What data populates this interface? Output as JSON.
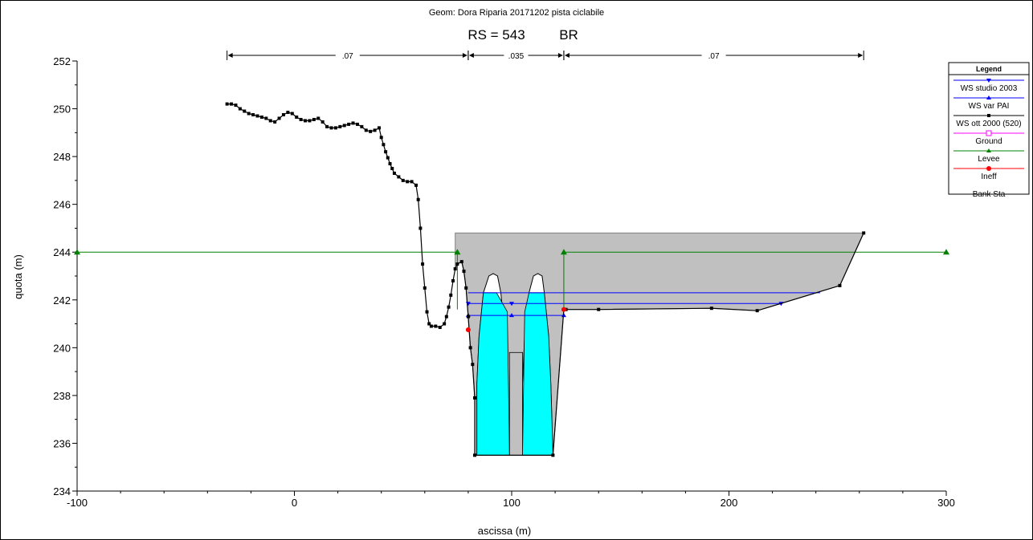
{
  "chart_data": {
    "type": "line",
    "title": "Geom: Dora Riparia 20171202 pista ciclabile",
    "subtitle_rs": "RS = 543",
    "subtitle_type": "BR",
    "xlabel": "ascissa (m)",
    "ylabel": "quota (m)",
    "xlim": [
      -100,
      300
    ],
    "ylim": [
      234,
      252
    ],
    "x_ticks": [
      "-100",
      "0",
      "100",
      "200",
      "300"
    ],
    "y_ticks": [
      "234",
      "236",
      "238",
      "240",
      "242",
      "244",
      "246",
      "248",
      "250",
      "252"
    ],
    "grid": false,
    "legend_position": "right",
    "mannings": [
      {
        "label": ".07",
        "from": -31,
        "to": 80
      },
      {
        "label": ".035",
        "from": 80,
        "to": 124
      },
      {
        "label": ".07",
        "from": 124,
        "to": 262
      }
    ],
    "legend": {
      "title": "Legend",
      "items": [
        {
          "label": "WS studio 2003",
          "color": "#0000ff",
          "marker": "triangle-down"
        },
        {
          "label": "WS var PAI",
          "color": "#0000ff",
          "marker": "triangle-up"
        },
        {
          "label": "WS ott 2000 (520)",
          "color": "#000000",
          "marker": "square"
        },
        {
          "label": "Ground",
          "color": "#ff00ff",
          "marker": "open-square"
        },
        {
          "label": "Levee",
          "color": "#008000",
          "marker": "triangle-up"
        },
        {
          "label": "Ineff",
          "color": "#ff0000",
          "marker": "circle"
        },
        {
          "label": "Bank Sta",
          "color": "",
          "marker": "none"
        }
      ]
    },
    "ground": [
      [
        -31,
        250.2
      ],
      [
        -29,
        250.2
      ],
      [
        -27,
        250.15
      ],
      [
        -25,
        250.0
      ],
      [
        -23,
        249.9
      ],
      [
        -21,
        249.8
      ],
      [
        -19,
        249.75
      ],
      [
        -17,
        249.7
      ],
      [
        -15,
        249.65
      ],
      [
        -13,
        249.6
      ],
      [
        -11,
        249.5
      ],
      [
        -9,
        249.45
      ],
      [
        -7,
        249.6
      ],
      [
        -5,
        249.75
      ],
      [
        -3,
        249.85
      ],
      [
        -1,
        249.8
      ],
      [
        1,
        249.65
      ],
      [
        3,
        249.55
      ],
      [
        5,
        249.5
      ],
      [
        7,
        249.5
      ],
      [
        9,
        249.55
      ],
      [
        11,
        249.6
      ],
      [
        13,
        249.45
      ],
      [
        15,
        249.25
      ],
      [
        17,
        249.2
      ],
      [
        19,
        249.2
      ],
      [
        21,
        249.25
      ],
      [
        23,
        249.3
      ],
      [
        25,
        249.35
      ],
      [
        27,
        249.4
      ],
      [
        29,
        249.35
      ],
      [
        31,
        249.25
      ],
      [
        33,
        249.1
      ],
      [
        35,
        249.05
      ],
      [
        37,
        249.1
      ],
      [
        39,
        249.2
      ],
      [
        40,
        248.8
      ],
      [
        41,
        248.5
      ],
      [
        42,
        248.2
      ],
      [
        43,
        247.95
      ],
      [
        44,
        247.7
      ],
      [
        45,
        247.5
      ],
      [
        46,
        247.3
      ],
      [
        48,
        247.15
      ],
      [
        50,
        247.0
      ],
      [
        52,
        246.95
      ],
      [
        54,
        246.95
      ],
      [
        56,
        246.8
      ],
      [
        57,
        246.2
      ],
      [
        58,
        245.0
      ],
      [
        59,
        243.5
      ],
      [
        60,
        242.5
      ],
      [
        61,
        241.5
      ],
      [
        62,
        241.0
      ],
      [
        63,
        240.9
      ],
      [
        65,
        240.9
      ],
      [
        67,
        240.85
      ],
      [
        69,
        241.0
      ],
      [
        70,
        241.3
      ],
      [
        71,
        241.7
      ],
      [
        72,
        242.2
      ],
      [
        73,
        242.8
      ],
      [
        74,
        243.3
      ],
      [
        75,
        243.5
      ],
      [
        77,
        243.6
      ],
      [
        78,
        243.2
      ],
      [
        79,
        242.5
      ],
      [
        80,
        241.3
      ],
      [
        81,
        240.0
      ],
      [
        82,
        239.3
      ],
      [
        83,
        237.9
      ],
      [
        83,
        235.5
      ],
      [
        119,
        235.5
      ],
      [
        124,
        241.6
      ],
      [
        125,
        241.6
      ],
      [
        140,
        241.6
      ],
      [
        192,
        241.65
      ],
      [
        213,
        241.55
      ],
      [
        251,
        242.6
      ],
      [
        262,
        244.8
      ]
    ],
    "deck": {
      "top": 244.8,
      "x_from": 74,
      "x_to": 262
    },
    "openings": [
      {
        "water_left": [
          [
            84,
            235.5
          ],
          [
            99,
            235.5
          ],
          [
            98,
            241.5
          ],
          [
            93,
            242.3
          ],
          [
            87,
            242.3
          ],
          [
            85,
            240.5
          ],
          [
            84,
            238.5
          ]
        ],
        "arch_top": 243.1
      },
      {
        "water_left": [
          [
            105,
            235.5
          ],
          [
            119,
            235.5
          ],
          [
            118,
            238.5
          ],
          [
            117,
            240.5
          ],
          [
            115,
            242.3
          ],
          [
            108,
            242.3
          ],
          [
            106,
            241.5
          ]
        ],
        "arch_top": 243.1
      }
    ],
    "pier": {
      "x_from": 99,
      "x_to": 105,
      "top": 239.8
    },
    "water_surfaces": [
      {
        "name": "WS studio 2003",
        "elevation": 242.3,
        "x_from": 80,
        "x_to": 242
      },
      {
        "name": "WS var PAI",
        "elevation": 241.85,
        "x_from": 80,
        "x_to": 224
      },
      {
        "name": "WS ott 2000 (520)",
        "elevation": 241.35,
        "x_from": 80,
        "x_to": 124
      }
    ],
    "levees": [
      {
        "x": 75,
        "elevation": 244.0,
        "line_from": -100
      },
      {
        "x": 124,
        "elevation": 244.0,
        "line_to": 300
      }
    ],
    "bank_stations": [
      {
        "x": 80,
        "elevation": 240.75
      },
      {
        "x": 124,
        "elevation": 241.6
      }
    ]
  }
}
